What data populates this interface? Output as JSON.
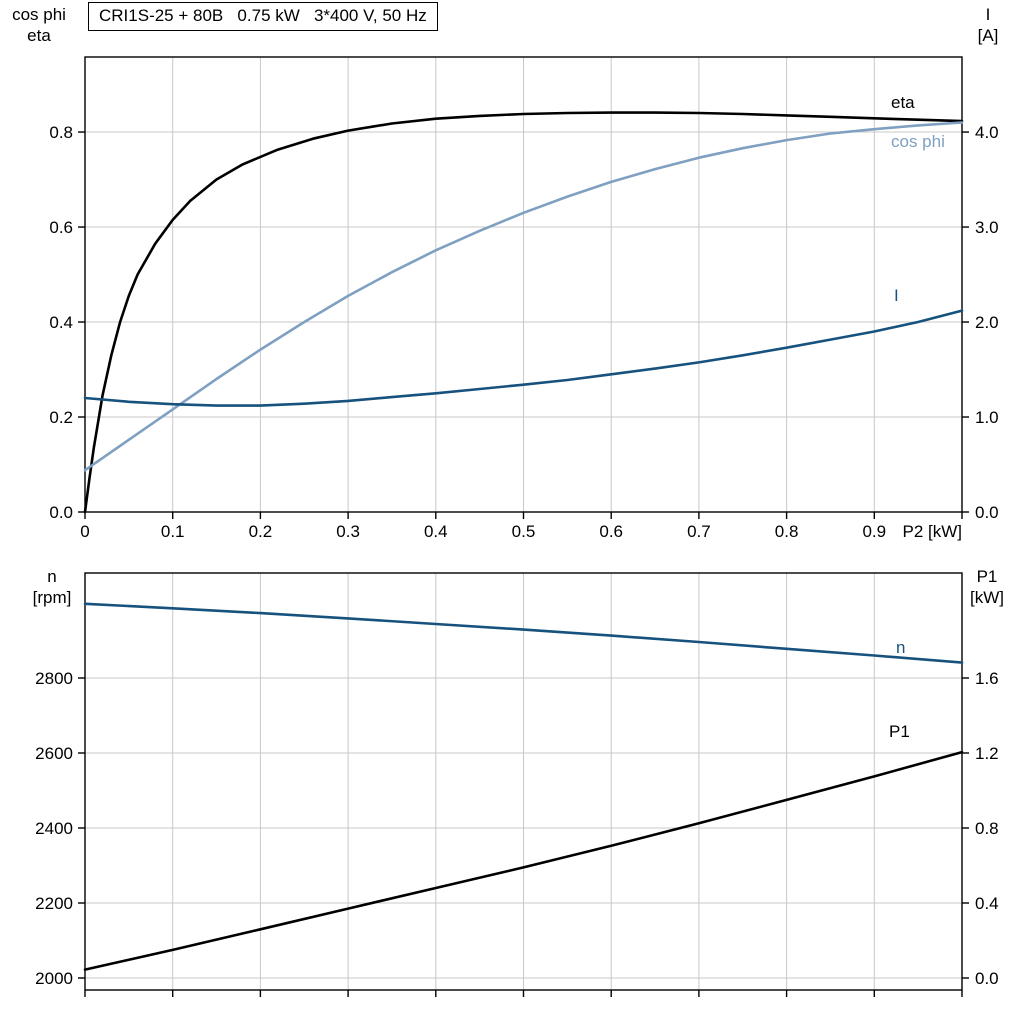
{
  "title_box": "CRI1S-25 + 80B   0.75 kW   3*400 V, 50 Hz",
  "colors": {
    "black": "#000000",
    "light_blue": "#7fa0c1",
    "dark_blue": "#17527e",
    "grid": "#c8c8c8",
    "frame": "#000000",
    "text": "#000000"
  },
  "axis_titles": {
    "top_left": [
      "cos phi",
      "eta"
    ],
    "top_right": [
      "I",
      "[A]"
    ],
    "bottom_left": [
      "n",
      "[rpm]"
    ],
    "bottom_right": [
      "P1",
      "[kW]"
    ]
  },
  "chart_data": [
    {
      "type": "line",
      "x_axis_label": "P2 [kW]",
      "xlim": [
        0,
        1.0
      ],
      "ylim_left": [
        0,
        0.958
      ],
      "ylim_right": [
        0,
        4.79
      ],
      "grid": true,
      "grid_x": [
        0.1,
        0.2,
        0.3,
        0.4,
        0.5,
        0.6,
        0.7,
        0.8,
        0.9
      ],
      "grid_y_left": [
        0.2,
        0.4,
        0.6,
        0.8
      ],
      "xticks": {
        "values": [
          0,
          0.1,
          0.2,
          0.3,
          0.4,
          0.5,
          0.6,
          0.7,
          0.8,
          0.9,
          1.0
        ],
        "labels": [
          "0",
          "0.1",
          "0.2",
          "0.3",
          "0.4",
          "0.5",
          "0.6",
          "0.7",
          "0.8",
          "0.9",
          ""
        ]
      },
      "yticks_left": {
        "values": [
          0.0,
          0.2,
          0.4,
          0.6,
          0.8
        ],
        "labels": [
          "0.0",
          "0.2",
          "0.4",
          "0.6",
          "0.8"
        ]
      },
      "yticks_right": {
        "values": [
          0.0,
          1.0,
          2.0,
          3.0,
          4.0
        ],
        "labels": [
          "0.0",
          "1.0",
          "2.0",
          "3.0",
          "4.0"
        ]
      },
      "series": [
        {
          "name": "eta",
          "label": "eta",
          "axis": "left",
          "color_key": "black",
          "x": [
            0,
            0.005,
            0.01,
            0.02,
            0.03,
            0.04,
            0.05,
            0.06,
            0.08,
            0.1,
            0.12,
            0.15,
            0.18,
            0.22,
            0.26,
            0.3,
            0.35,
            0.4,
            0.45,
            0.5,
            0.55,
            0.6,
            0.65,
            0.7,
            0.75,
            0.8,
            0.85,
            0.9,
            0.95,
            1.0
          ],
          "y": [
            0,
            0.07,
            0.135,
            0.245,
            0.33,
            0.4,
            0.455,
            0.5,
            0.565,
            0.615,
            0.655,
            0.7,
            0.732,
            0.763,
            0.786,
            0.803,
            0.818,
            0.828,
            0.834,
            0.838,
            0.84,
            0.841,
            0.841,
            0.84,
            0.838,
            0.835,
            0.832,
            0.829,
            0.826,
            0.823
          ]
        },
        {
          "name": "cos phi",
          "label": "cos phi",
          "axis": "left",
          "color_key": "light_blue",
          "x": [
            0,
            0.05,
            0.1,
            0.15,
            0.2,
            0.25,
            0.3,
            0.35,
            0.4,
            0.45,
            0.5,
            0.55,
            0.6,
            0.65,
            0.7,
            0.75,
            0.8,
            0.85,
            0.9,
            0.95,
            1.0
          ],
          "y": [
            0.088,
            0.152,
            0.216,
            0.28,
            0.342,
            0.4,
            0.455,
            0.505,
            0.551,
            0.592,
            0.63,
            0.664,
            0.695,
            0.722,
            0.746,
            0.766,
            0.783,
            0.797,
            0.806,
            0.814,
            0.82
          ]
        },
        {
          "name": "I",
          "label": "I",
          "axis": "right",
          "color_key": "dark_blue",
          "x": [
            0,
            0.05,
            0.1,
            0.15,
            0.2,
            0.25,
            0.3,
            0.35,
            0.4,
            0.45,
            0.5,
            0.55,
            0.6,
            0.65,
            0.7,
            0.75,
            0.8,
            0.85,
            0.9,
            0.95,
            1.0
          ],
          "y": [
            1.2,
            1.16,
            1.135,
            1.12,
            1.12,
            1.14,
            1.17,
            1.21,
            1.25,
            1.295,
            1.34,
            1.39,
            1.45,
            1.51,
            1.575,
            1.65,
            1.73,
            1.815,
            1.9,
            2.0,
            2.12
          ]
        }
      ]
    },
    {
      "type": "line",
      "x_axis_label": "",
      "xlim": [
        0,
        1.0
      ],
      "ylim_left": [
        1968,
        3080
      ],
      "ylim_right": [
        -0.064,
        2.16
      ],
      "grid": true,
      "grid_x": [
        0.1,
        0.2,
        0.3,
        0.4,
        0.5,
        0.6,
        0.7,
        0.8,
        0.9
      ],
      "grid_y_left": [
        2000,
        2200,
        2400,
        2600,
        2800
      ],
      "xticks": {
        "values": [
          0,
          0.1,
          0.2,
          0.3,
          0.4,
          0.5,
          0.6,
          0.7,
          0.8,
          0.9,
          1.0
        ],
        "labels": [
          "",
          "",
          "",
          "",
          "",
          "",
          "",
          "",
          "",
          "",
          ""
        ]
      },
      "yticks_left": {
        "values": [
          2000,
          2200,
          2400,
          2600,
          2800
        ],
        "labels": [
          "2000",
          "2200",
          "2400",
          "2600",
          "2800"
        ]
      },
      "yticks_right": {
        "values": [
          0.0,
          0.4,
          0.8,
          1.2,
          1.6
        ],
        "labels": [
          "0.0",
          "0.4",
          "0.8",
          "1.2",
          "1.6"
        ]
      },
      "series": [
        {
          "name": "n",
          "label": "n",
          "axis": "left",
          "color_key": "dark_blue",
          "x": [
            0,
            0.1,
            0.2,
            0.3,
            0.4,
            0.5,
            0.6,
            0.7,
            0.8,
            0.9,
            1.0
          ],
          "y": [
            2998,
            2986,
            2973,
            2959,
            2944,
            2929,
            2913,
            2896,
            2878,
            2860,
            2841
          ]
        },
        {
          "name": "P1",
          "label": "P1",
          "axis": "right",
          "color_key": "black",
          "x": [
            0,
            0.1,
            0.2,
            0.3,
            0.4,
            0.5,
            0.6,
            0.7,
            0.8,
            0.9,
            1.0
          ],
          "y": [
            0.045,
            0.15,
            0.26,
            0.37,
            0.48,
            0.59,
            0.705,
            0.825,
            0.95,
            1.075,
            1.205
          ]
        }
      ]
    }
  ]
}
